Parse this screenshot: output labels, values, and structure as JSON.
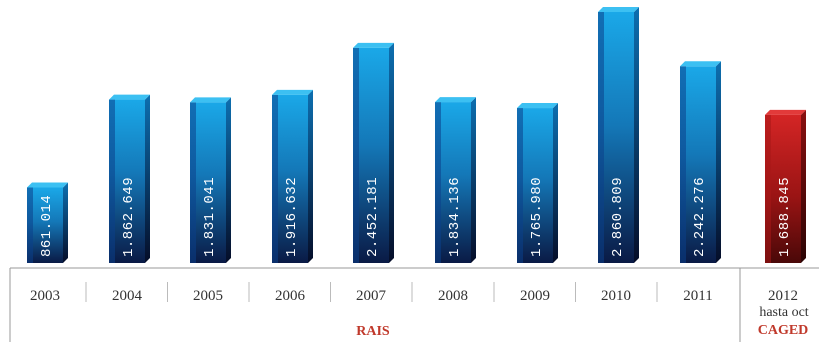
{
  "chart_data": {
    "type": "bar",
    "categories": [
      "2003",
      "2004",
      "2005",
      "2006",
      "2007",
      "2008",
      "2009",
      "2010",
      "2011",
      "2012"
    ],
    "category_sublabels": [
      "",
      "",
      "",
      "",
      "",
      "",
      "",
      "",
      "",
      "hasta oct"
    ],
    "values": [
      861014,
      1862649,
      1831041,
      1916632,
      2452181,
      1834136,
      1765980,
      2860809,
      2242276,
      1688845
    ],
    "value_labels": [
      "861.014",
      "1.862.649",
      "1.831.041",
      "1.916.632",
      "2.452.181",
      "1.834.136",
      "1.765.980",
      "2.860.809",
      "2.242.276",
      "1.688.845"
    ],
    "bar_series": [
      "RAIS",
      "RAIS",
      "RAIS",
      "RAIS",
      "RAIS",
      "RAIS",
      "RAIS",
      "RAIS",
      "RAIS",
      "CAGED"
    ],
    "group_labels": [
      {
        "text": "RAIS",
        "color": "#c0392b"
      },
      {
        "text": "CAGED",
        "color": "#c0392b"
      }
    ],
    "ylim": [
      0,
      3100000
    ],
    "colors": {
      "rais_top": "#1aa8e8",
      "rais_bottom": "#0a1a45",
      "caged_top": "#c42020",
      "caged_bottom": "#4a0808"
    },
    "grid": false
  }
}
